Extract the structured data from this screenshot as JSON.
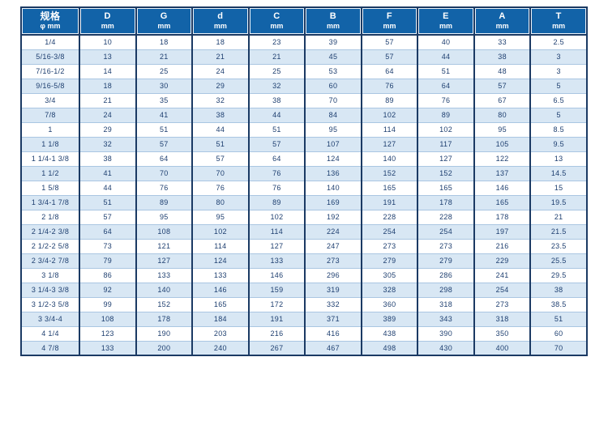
{
  "chart_data": {
    "type": "table",
    "columns": [
      {
        "label": "规格",
        "unit": "φ mm"
      },
      {
        "label": "D",
        "unit": "mm"
      },
      {
        "label": "G",
        "unit": "mm"
      },
      {
        "label": "d",
        "unit": "mm"
      },
      {
        "label": "C",
        "unit": "mm"
      },
      {
        "label": "B",
        "unit": "mm"
      },
      {
        "label": "F",
        "unit": "mm"
      },
      {
        "label": "E",
        "unit": "mm"
      },
      {
        "label": "A",
        "unit": "mm"
      },
      {
        "label": "T",
        "unit": "mm"
      }
    ],
    "rows": [
      {
        "spec": "1/4",
        "values": [
          "10",
          "18",
          "18",
          "23",
          "39",
          "57",
          "40",
          "33",
          "2.5"
        ]
      },
      {
        "spec": "5/16-3/8",
        "values": [
          "13",
          "21",
          "21",
          "21",
          "45",
          "57",
          "44",
          "38",
          "3"
        ]
      },
      {
        "spec": "7/16-1/2",
        "values": [
          "14",
          "25",
          "24",
          "25",
          "53",
          "64",
          "51",
          "48",
          "3"
        ]
      },
      {
        "spec": "9/16-5/8",
        "values": [
          "18",
          "30",
          "29",
          "32",
          "60",
          "76",
          "64",
          "57",
          "5"
        ]
      },
      {
        "spec": "3/4",
        "values": [
          "21",
          "35",
          "32",
          "38",
          "70",
          "89",
          "76",
          "67",
          "6.5"
        ]
      },
      {
        "spec": "7/8",
        "values": [
          "24",
          "41",
          "38",
          "44",
          "84",
          "102",
          "89",
          "80",
          "5"
        ]
      },
      {
        "spec": "1",
        "values": [
          "29",
          "51",
          "44",
          "51",
          "95",
          "114",
          "102",
          "95",
          "8.5"
        ]
      },
      {
        "spec": "1 1/8",
        "values": [
          "32",
          "57",
          "51",
          "57",
          "107",
          "127",
          "117",
          "105",
          "9.5"
        ]
      },
      {
        "spec": "1 1/4-1 3/8",
        "values": [
          "38",
          "64",
          "57",
          "64",
          "124",
          "140",
          "127",
          "122",
          "13"
        ]
      },
      {
        "spec": "1 1/2",
        "values": [
          "41",
          "70",
          "70",
          "76",
          "136",
          "152",
          "152",
          "137",
          "14.5"
        ]
      },
      {
        "spec": "1 5/8",
        "values": [
          "44",
          "76",
          "76",
          "76",
          "140",
          "165",
          "165",
          "146",
          "15"
        ]
      },
      {
        "spec": "1 3/4-1 7/8",
        "values": [
          "51",
          "89",
          "80",
          "89",
          "169",
          "191",
          "178",
          "165",
          "19.5"
        ]
      },
      {
        "spec": "2 1/8",
        "values": [
          "57",
          "95",
          "95",
          "102",
          "192",
          "228",
          "228",
          "178",
          "21"
        ]
      },
      {
        "spec": "2 1/4-2 3/8",
        "values": [
          "64",
          "108",
          "102",
          "114",
          "224",
          "254",
          "254",
          "197",
          "21.5"
        ]
      },
      {
        "spec": "2 1/2-2 5/8",
        "values": [
          "73",
          "121",
          "114",
          "127",
          "247",
          "273",
          "273",
          "216",
          "23.5"
        ]
      },
      {
        "spec": "2 3/4-2 7/8",
        "values": [
          "79",
          "127",
          "124",
          "133",
          "273",
          "279",
          "279",
          "229",
          "25.5"
        ]
      },
      {
        "spec": "3 1/8",
        "values": [
          "86",
          "133",
          "133",
          "146",
          "296",
          "305",
          "286",
          "241",
          "29.5"
        ]
      },
      {
        "spec": "3 1/4-3 3/8",
        "values": [
          "92",
          "140",
          "146",
          "159",
          "319",
          "328",
          "298",
          "254",
          "38"
        ]
      },
      {
        "spec": "3 1/2-3 5/8",
        "values": [
          "99",
          "152",
          "165",
          "172",
          "332",
          "360",
          "318",
          "273",
          "38.5"
        ]
      },
      {
        "spec": "3 3/4-4",
        "values": [
          "108",
          "178",
          "184",
          "191",
          "371",
          "389",
          "343",
          "318",
          "51"
        ]
      },
      {
        "spec": "4 1/4",
        "values": [
          "123",
          "190",
          "203",
          "216",
          "416",
          "438",
          "390",
          "350",
          "60"
        ]
      },
      {
        "spec": "4 7/8",
        "values": [
          "133",
          "200",
          "240",
          "267",
          "467",
          "498",
          "430",
          "400",
          "70"
        ]
      }
    ]
  },
  "colors": {
    "header_bg": "#1263a8",
    "header_text": "#ffffff",
    "border_dark": "#1b3a64",
    "row_bg": "#ffffff",
    "row_alt_bg": "#d8e7f4",
    "cell_text": "#1e3f70",
    "separator": "#aac6e2"
  }
}
